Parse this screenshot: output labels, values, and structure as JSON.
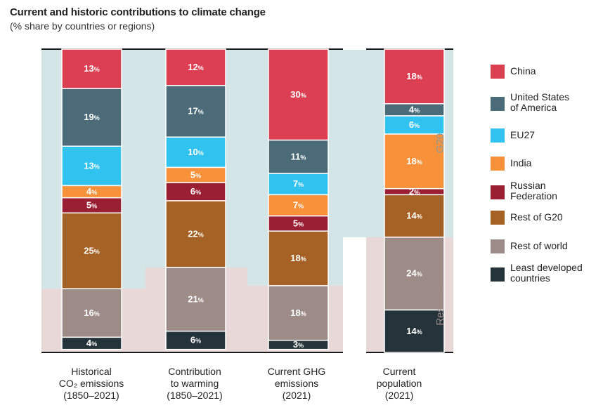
{
  "title": "Current and historic contributions to climate change",
  "subtitle": "(% share by countries or regions)",
  "groups": {
    "g20": "G20",
    "rest": "Rest of world"
  },
  "colors": {
    "China": "#dc3f52",
    "United States of America": "#4c6b78",
    "EU27": "#31c3ef",
    "India": "#f7923a",
    "Russian Federation": "#9b1f32",
    "Rest of G20": "#a66224",
    "Rest of world": "#9c8b87",
    "Least developed countries": "#25333a",
    "g20_band": "#d3e5e6",
    "rest_band": "#e8d9d8"
  },
  "legend": [
    {
      "key": "China",
      "lines": [
        "China"
      ]
    },
    {
      "key": "United States of America",
      "lines": [
        "United States",
        "of America"
      ]
    },
    {
      "key": "EU27",
      "lines": [
        "EU27"
      ]
    },
    {
      "key": "India",
      "lines": [
        "India"
      ]
    },
    {
      "key": "Russian Federation",
      "lines": [
        "Russian",
        "Federation"
      ]
    },
    {
      "key": "Rest of G20",
      "lines": [
        "Rest of G20"
      ]
    },
    {
      "key": "Rest of world",
      "lines": [
        "Rest of world"
      ]
    },
    {
      "key": "Least developed countries",
      "lines": [
        "Least developed",
        "countries"
      ]
    }
  ],
  "chart_data": {
    "type": "bar",
    "stacked": true,
    "unit": "%",
    "categories": [
      [
        "Historical",
        "CO₂ emissions",
        "(1850–2021)"
      ],
      [
        "Contribution",
        "to warming",
        "(1850–2021)"
      ],
      [
        "Current GHG",
        "emissions",
        "(2021)"
      ],
      [
        "Current",
        "population",
        "(2021)"
      ]
    ],
    "series": [
      {
        "name": "China",
        "values": [
          13,
          12,
          30,
          18
        ]
      },
      {
        "name": "United States of America",
        "values": [
          19,
          17,
          11,
          4
        ]
      },
      {
        "name": "EU27",
        "values": [
          13,
          10,
          7,
          6
        ]
      },
      {
        "name": "India",
        "values": [
          4,
          5,
          7,
          18
        ]
      },
      {
        "name": "Russian Federation",
        "values": [
          5,
          6,
          5,
          2
        ]
      },
      {
        "name": "Rest of G20",
        "values": [
          25,
          22,
          18,
          14
        ]
      },
      {
        "name": "Rest of world",
        "values": [
          16,
          21,
          18,
          24
        ]
      },
      {
        "name": "Least developed countries",
        "values": [
          4,
          6,
          3,
          14
        ]
      }
    ]
  }
}
